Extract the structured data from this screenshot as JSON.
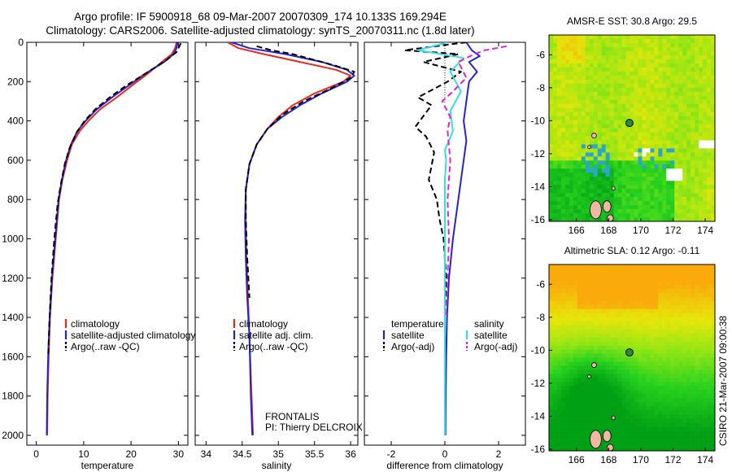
{
  "header": {
    "line1": "Argo profile: IF 5900918_68 09-Mar-2007 20070309_174 10.133S 169.294E",
    "line2": "Climatology: CARS2006. Satellite-adjusted climatology: synTS_20070311.nc (1.8d later)"
  },
  "side_stamp": "CSIRO 21-Mar-2007 09:00:38",
  "colors": {
    "climatology": "#e8281e",
    "satellite": "#2323d2",
    "argo": "#000000",
    "sat_diff": "#33e0e0",
    "sal_argo": "#e020e0"
  },
  "chart_data": [
    {
      "type": "line",
      "xlabel": "temperature",
      "xticks": [
        0,
        10,
        20,
        30
      ],
      "xlim": [
        -2,
        32
      ],
      "ylim": [
        2050,
        0
      ],
      "yticks": [
        0,
        200,
        400,
        600,
        800,
        1000,
        1200,
        1400,
        1600,
        1800,
        2000
      ],
      "ytick_labels": [
        "0",
        "200",
        "400",
        "600",
        "800",
        "1000",
        "1200",
        "1400",
        "1600",
        "1800",
        "2000"
      ],
      "legend": [
        "climatology",
        "satellite-adjusted climatology",
        "Argo(..raw -QC)"
      ],
      "series": [
        {
          "name": "climatology",
          "style": "solid",
          "color": "climatology",
          "x": [
            29.6,
            29.3,
            28.6,
            26.5,
            23.5,
            20.2,
            17.0,
            13.5,
            11.0,
            9.2,
            7.5,
            6.5,
            5.5,
            4.8,
            4.1,
            3.4,
            2.9,
            2.6,
            2.4,
            2.3
          ],
          "y": [
            2,
            30,
            60,
            100,
            160,
            220,
            280,
            340,
            400,
            450,
            520,
            600,
            700,
            800,
            1000,
            1200,
            1400,
            1600,
            1800,
            2000
          ]
        },
        {
          "name": "satellite-adjusted climatology",
          "style": "solid",
          "color": "satellite",
          "x": [
            29.8,
            29.6,
            29.0,
            27.0,
            23.0,
            19.5,
            16.0,
            12.8,
            10.4,
            8.7,
            7.3,
            6.3,
            5.4,
            4.7,
            4.0,
            3.3,
            2.8,
            2.5,
            2.3,
            2.2
          ],
          "y": [
            2,
            30,
            60,
            100,
            160,
            220,
            280,
            340,
            400,
            450,
            520,
            600,
            700,
            800,
            1000,
            1200,
            1400,
            1600,
            1800,
            2000
          ]
        },
        {
          "name": "Argo(..raw -QC)",
          "style": "dashed",
          "color": "argo",
          "x": [
            30.5,
            30.2,
            29.6,
            27.5,
            23.0,
            19.0,
            15.5,
            12.5,
            10.2,
            8.5,
            7.0,
            6.0,
            5.2,
            4.5,
            3.8,
            3.2,
            2.8,
            2.5
          ],
          "y": [
            5,
            20,
            50,
            90,
            160,
            220,
            280,
            340,
            400,
            460,
            540,
            620,
            720,
            820,
            1000,
            1200,
            1400,
            1600
          ]
        }
      ]
    },
    {
      "type": "line",
      "xlabel": "salinity",
      "xticks": [
        34,
        34.5,
        35,
        35.5,
        36
      ],
      "xtick_labels": [
        "34",
        "34.5",
        "35",
        "35.5",
        "36"
      ],
      "xlim": [
        33.85,
        36.1
      ],
      "ylim": [
        2050,
        0
      ],
      "legend": [
        "climatology",
        "satellite adj. clim.",
        "Argo(..raw -QC)"
      ],
      "annotation": [
        "FRONTALIS",
        "PI: Thierry DELCROIX"
      ],
      "series": [
        {
          "name": "climatology",
          "style": "solid",
          "color": "climatology",
          "x": [
            34.3,
            34.45,
            34.8,
            35.3,
            35.8,
            36.0,
            35.9,
            35.5,
            35.2,
            35.0,
            34.85,
            34.7,
            34.6,
            34.55,
            34.55,
            34.56,
            34.58,
            34.6,
            34.63,
            34.65
          ],
          "y": [
            0,
            30,
            60,
            100,
            140,
            170,
            200,
            260,
            320,
            380,
            440,
            520,
            620,
            750,
            900,
            1100,
            1300,
            1500,
            1800,
            2000
          ]
        },
        {
          "name": "satellite adj. clim.",
          "style": "solid",
          "color": "satellite",
          "x": [
            34.35,
            34.6,
            35.1,
            35.6,
            35.95,
            36.05,
            35.95,
            35.6,
            35.3,
            35.05,
            34.85,
            34.7,
            34.6,
            34.55,
            34.54,
            34.55,
            34.57,
            34.6,
            34.62,
            34.64
          ],
          "y": [
            0,
            30,
            60,
            100,
            140,
            170,
            200,
            260,
            320,
            380,
            440,
            520,
            620,
            750,
            900,
            1100,
            1300,
            1500,
            1800,
            2000
          ]
        },
        {
          "name": "Argo(..raw -QC)",
          "style": "dashed",
          "color": "argo",
          "x": [
            34.7,
            34.9,
            35.2,
            35.5,
            35.8,
            36.05,
            36.0,
            35.7,
            35.35,
            35.05,
            34.85,
            34.7,
            34.6,
            34.55,
            34.55,
            34.57,
            34.6
          ],
          "y": [
            20,
            40,
            60,
            90,
            120,
            150,
            180,
            240,
            300,
            370,
            440,
            520,
            620,
            750,
            900,
            1100,
            1300
          ]
        }
      ]
    },
    {
      "type": "line",
      "xlabel": "difference from climatology",
      "xticks": [
        -2,
        0,
        2
      ],
      "xtick_labels": [
        "-2",
        "0",
        "2"
      ],
      "xlim": [
        -3.0,
        3.0
      ],
      "ylim": [
        2050,
        0
      ],
      "legend_left_title": "temperature",
      "legend_right_title": "salinity",
      "legend": [
        "satellite",
        "Argo(-adj)",
        "satellite",
        "Argo(-adj)"
      ],
      "series": [
        {
          "name": "satellite",
          "group": "temperature",
          "style": "solid",
          "color": "satellite",
          "x": [
            0.8,
            1.0,
            1.3,
            0.9,
            1.2,
            0.9,
            0.8,
            0.7,
            0.8,
            0.7,
            0.6,
            0.5,
            0.4,
            0.3,
            0.15,
            0.08,
            0.05,
            0.03,
            0.02
          ],
          "y": [
            0,
            40,
            70,
            100,
            150,
            200,
            300,
            400,
            500,
            600,
            700,
            800,
            900,
            1000,
            1200,
            1400,
            1600,
            1800,
            2000
          ]
        },
        {
          "name": "Argo(-adj)",
          "group": "temperature",
          "style": "dashed",
          "color": "argo",
          "x": [
            0.8,
            -1.5,
            0.5,
            -0.8,
            0.6,
            0.1,
            -1.0,
            -0.5,
            -1.1,
            -0.7,
            -0.4,
            -0.6,
            -0.3,
            -0.2,
            -0.05,
            0.05,
            0.0,
            0.0,
            0.0,
            0.0
          ],
          "y": [
            0,
            40,
            60,
            100,
            150,
            200,
            280,
            320,
            430,
            480,
            560,
            700,
            800,
            900,
            1000,
            1200,
            1400,
            1600,
            1800,
            2000
          ]
        },
        {
          "name": "satellite",
          "group": "salinity",
          "style": "solid",
          "color": "sat_diff",
          "x": [
            0.1,
            -1.0,
            0.7,
            0.2,
            0.6,
            0.2,
            0.3,
            0.0,
            0.05,
            0.0,
            0.0,
            0.0,
            0.0,
            0.0,
            0.0,
            0.0,
            0.0,
            0.0
          ],
          "y": [
            0,
            40,
            80,
            150,
            250,
            350,
            450,
            550,
            600,
            700,
            800,
            900,
            1000,
            1200,
            1400,
            1600,
            1800,
            2000
          ]
        },
        {
          "name": "Argo(-adj)",
          "group": "salinity",
          "style": "dashed",
          "color": "sal_argo",
          "x": [
            2.3,
            1.5,
            1.1,
            0.5,
            0.8,
            0.3,
            -0.1,
            0.2,
            0.1,
            0.2,
            0.1,
            0.15,
            0.1,
            0.05
          ],
          "y": [
            20,
            40,
            60,
            100,
            180,
            250,
            300,
            380,
            450,
            600,
            800,
            1000,
            1200,
            1400
          ]
        }
      ]
    },
    {
      "type": "heatmap",
      "title": "AMSR-E SST: 30.8 Argo: 29.5",
      "xticks": [
        166,
        168,
        170,
        172,
        174
      ],
      "yticks": [
        -6,
        -8,
        -10,
        -12,
        -14,
        -16
      ],
      "xlim": [
        164.3,
        174.6
      ],
      "ylim": [
        -16.1,
        -4.8
      ],
      "marker": {
        "lon": 169.294,
        "lat": -10.133
      }
    },
    {
      "type": "heatmap",
      "title": "Altimetric SLA: 0.12 Argo: -0.11",
      "xticks": [
        166,
        168,
        170,
        172,
        174
      ],
      "yticks": [
        -6,
        -8,
        -10,
        -12,
        -14,
        -16
      ],
      "xlim": [
        164.3,
        174.6
      ],
      "ylim": [
        -16.1,
        -4.8
      ],
      "marker": {
        "lon": 169.294,
        "lat": -10.133
      }
    }
  ]
}
